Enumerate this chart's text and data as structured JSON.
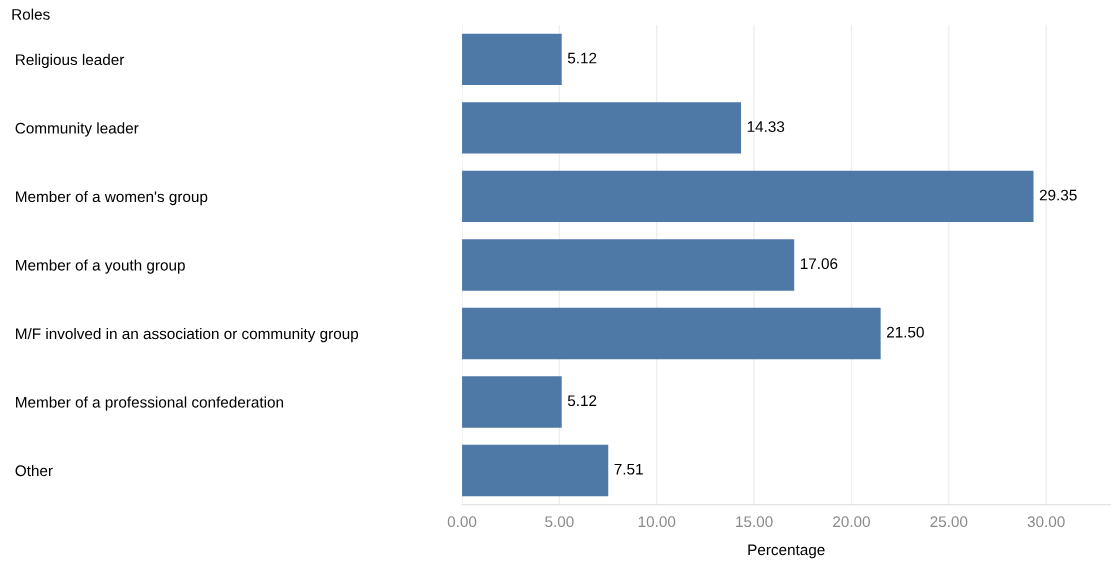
{
  "chart_data": {
    "type": "bar",
    "orientation": "horizontal",
    "ylabel": "Roles",
    "xlabel": "Percentage",
    "categories": [
      "Religious leader",
      "Community leader",
      "Member of a women's group",
      "Member of a youth group",
      "M/F involved in an association or community group",
      "Member of a professional confederation",
      "Other"
    ],
    "values": [
      5.12,
      14.33,
      29.35,
      17.06,
      21.5,
      5.12,
      7.51
    ],
    "value_labels": [
      "5.12",
      "14.33",
      "29.35",
      "17.06",
      "21.50",
      "5.12",
      "7.51"
    ],
    "color": "#4e79a7",
    "xlim": [
      0,
      33.3
    ],
    "xticks": [
      {
        "value": 0,
        "label": "0.00"
      },
      {
        "value": 5,
        "label": "5.00"
      },
      {
        "value": 10,
        "label": "10.00"
      },
      {
        "value": 15,
        "label": "15.00"
      },
      {
        "value": 20,
        "label": "20.00"
      },
      {
        "value": 25,
        "label": "25.00"
      },
      {
        "value": 30,
        "label": "30.00"
      }
    ],
    "grid": "x",
    "legend": false
  }
}
